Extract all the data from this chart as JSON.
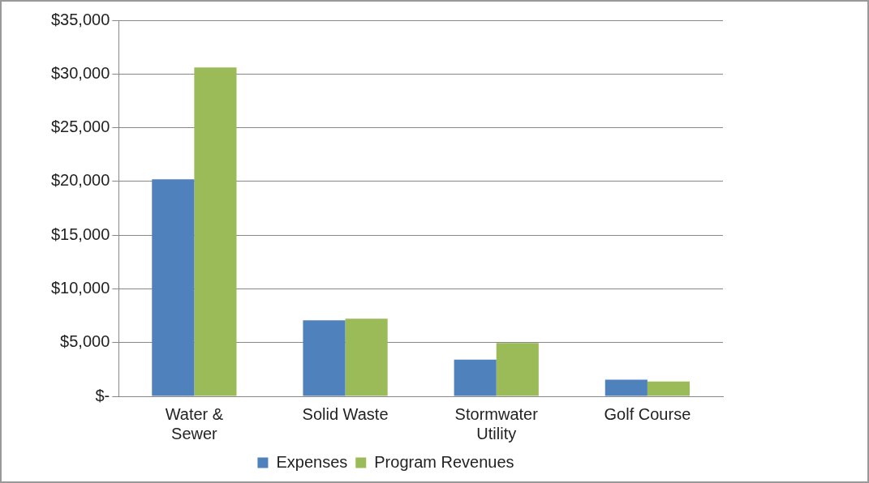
{
  "chart_data": {
    "type": "bar",
    "categories": [
      "Water & Sewer",
      "Solid Waste",
      "Stormwater Utility",
      "Golf Course"
    ],
    "series": [
      {
        "name": "Expenses",
        "color": "#4f81bd",
        "values": [
          20200,
          7070,
          3410,
          1540
        ]
      },
      {
        "name": "Program Revenues",
        "color": "#9bbb59",
        "values": [
          30600,
          7230,
          4960,
          1380
        ]
      }
    ],
    "ylim": [
      0,
      35000
    ],
    "yticks": [
      {
        "value": 0,
        "label": "$-"
      },
      {
        "value": 5000,
        "label": "$5,000"
      },
      {
        "value": 10000,
        "label": "$10,000"
      },
      {
        "value": 15000,
        "label": "$15,000"
      },
      {
        "value": 20000,
        "label": "$20,000"
      },
      {
        "value": 25000,
        "label": "$25,000"
      },
      {
        "value": 30000,
        "label": "$30,000"
      },
      {
        "value": 35000,
        "label": "$35,000"
      }
    ],
    "grid": "y",
    "legend": "bottom"
  }
}
